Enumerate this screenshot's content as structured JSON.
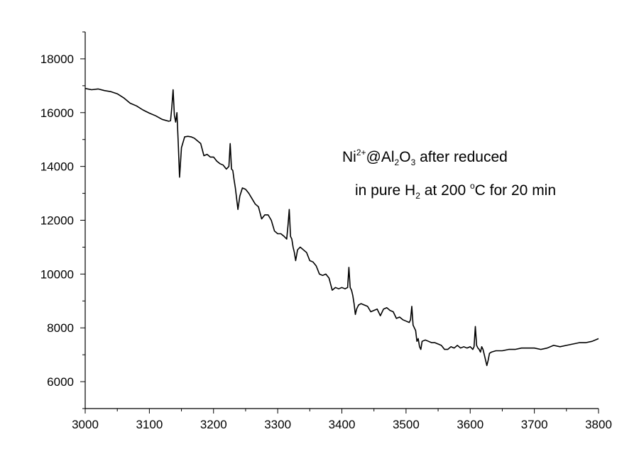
{
  "chart_data": {
    "type": "line",
    "title": "",
    "xlabel": "",
    "ylabel": "",
    "xlim": [
      3000,
      3800
    ],
    "ylim": [
      5000,
      19000
    ],
    "x_ticks": [
      3000,
      3100,
      3200,
      3300,
      3400,
      3500,
      3600,
      3700,
      3800
    ],
    "y_ticks": [
      6000,
      8000,
      10000,
      12000,
      14000,
      16000,
      18000
    ],
    "grid": false,
    "legend": "none",
    "line_color": "#000000",
    "annotation": {
      "line1": {
        "a": "Ni",
        "b": "2+",
        "c": "@Al",
        "d": "2",
        "e": "O",
        "f": "3",
        "g": " after reduced"
      },
      "line2": {
        "a": "in pure H",
        "b": "2",
        "c": " at 200 ",
        "d": "o",
        "e": "C for 20 min"
      }
    },
    "series": [
      {
        "x": [
          3000,
          3010,
          3020,
          3030,
          3040,
          3050,
          3060,
          3070,
          3080,
          3090,
          3100,
          3110,
          3120,
          3130,
          3133,
          3135,
          3137,
          3139,
          3141,
          3143,
          3145,
          3147,
          3150,
          3155,
          3160,
          3165,
          3170,
          3175,
          3180,
          3185,
          3190,
          3195,
          3200,
          3205,
          3210,
          3215,
          3220,
          3224,
          3226,
          3228,
          3230,
          3232,
          3234,
          3236,
          3238,
          3241,
          3245,
          3250,
          3255,
          3260,
          3265,
          3270,
          3275,
          3280,
          3285,
          3290,
          3295,
          3300,
          3305,
          3310,
          3314,
          3316,
          3318,
          3320,
          3322,
          3324,
          3326,
          3328,
          3331,
          3335,
          3340,
          3345,
          3350,
          3355,
          3360,
          3365,
          3370,
          3375,
          3380,
          3385,
          3390,
          3395,
          3400,
          3405,
          3409,
          3411,
          3413,
          3415,
          3417,
          3419,
          3421,
          3423,
          3426,
          3430,
          3435,
          3440,
          3445,
          3450,
          3455,
          3460,
          3465,
          3470,
          3475,
          3480,
          3485,
          3490,
          3495,
          3500,
          3505,
          3507,
          3509,
          3511,
          3513,
          3515,
          3517,
          3519,
          3521,
          3523,
          3525,
          3530,
          3535,
          3540,
          3545,
          3550,
          3555,
          3560,
          3565,
          3570,
          3575,
          3580,
          3585,
          3590,
          3595,
          3600,
          3604,
          3606,
          3608,
          3610,
          3612,
          3614,
          3616,
          3618,
          3620,
          3622,
          3624,
          3626,
          3628,
          3630,
          3633,
          3640,
          3650,
          3660,
          3670,
          3680,
          3690,
          3700,
          3710,
          3720,
          3730,
          3740,
          3750,
          3760,
          3770,
          3780,
          3790,
          3800
        ],
        "y": [
          16900,
          16850,
          16880,
          16820,
          16780,
          16700,
          16550,
          16350,
          16250,
          16100,
          15980,
          15880,
          15750,
          15680,
          15700,
          16200,
          16850,
          15900,
          15650,
          16000,
          14900,
          13600,
          14700,
          15100,
          15120,
          15100,
          15050,
          14950,
          14850,
          14400,
          14450,
          14350,
          14350,
          14200,
          14100,
          14050,
          13900,
          14000,
          14850,
          13900,
          13850,
          13500,
          13200,
          12800,
          12400,
          12900,
          13200,
          13150,
          13000,
          12800,
          12600,
          12500,
          12050,
          12200,
          12200,
          12000,
          11600,
          11500,
          11500,
          11400,
          11300,
          11800,
          12400,
          11400,
          11300,
          11000,
          10800,
          10500,
          10900,
          11000,
          10900,
          10800,
          10500,
          10450,
          10300,
          10000,
          9950,
          10000,
          9850,
          9400,
          9500,
          9450,
          9500,
          9450,
          9500,
          10250,
          9500,
          9400,
          9200,
          8900,
          8500,
          8700,
          8850,
          8900,
          8850,
          8800,
          8600,
          8650,
          8700,
          8450,
          8700,
          8750,
          8650,
          8600,
          8350,
          8400,
          8300,
          8250,
          8200,
          8300,
          8800,
          8100,
          8000,
          7900,
          7500,
          7600,
          7300,
          7200,
          7500,
          7550,
          7500,
          7450,
          7450,
          7400,
          7350,
          7200,
          7200,
          7300,
          7250,
          7350,
          7250,
          7300,
          7250,
          7300,
          7200,
          7300,
          8050,
          7350,
          7250,
          7200,
          7100,
          7300,
          7200,
          7000,
          6800,
          6600,
          6800,
          7050,
          7100,
          7150,
          7150,
          7200,
          7200,
          7250,
          7250,
          7250,
          7200,
          7250,
          7350,
          7300,
          7350,
          7400,
          7450,
          7450,
          7500,
          7600
        ]
      }
    ]
  }
}
